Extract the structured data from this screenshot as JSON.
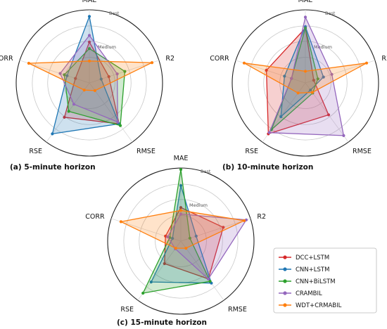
{
  "ring_labels": {
    "best": "Best",
    "medium": "Medium"
  },
  "colors": {
    "DCC+LSTM": "#d62728",
    "CNN+LSTM": "#1f77b4",
    "CNN+BiLSTM": "#2ca02c",
    "CRAMBIL": "#9467bd",
    "WDT+CRMABIL": "#ff7f0e"
  },
  "legend": [
    "DCC+LSTM",
    "CNN+LSTM",
    "CNN+BiLSTM",
    "CRAMBIL",
    "WDT+CRMABIL"
  ],
  "chart_data": [
    {
      "type": "radar",
      "caption": "(a) 5-minute horizon",
      "axes": [
        "MAE",
        "R2",
        "RMSE",
        "RSE",
        "CORR"
      ],
      "scale": [
        0,
        1
      ],
      "series": [
        {
          "name": "DCC+LSTM",
          "values": [
            0.56,
            0.28,
            0.69,
            0.58,
            0.2
          ]
        },
        {
          "name": "CNN+LSTM",
          "values": [
            0.91,
            0.17,
            0.69,
            0.86,
            0.32
          ]
        },
        {
          "name": "CNN+BiLSTM",
          "values": [
            0.47,
            0.51,
            0.72,
            0.48,
            0.36
          ]
        },
        {
          "name": "CRAMBIL",
          "values": [
            0.65,
            0.4,
            0.66,
            0.36,
            0.42
          ]
        },
        {
          "name": "WDT+CRMABIL",
          "values": [
            0.3,
            0.9,
            0.13,
            0.12,
            0.87
          ]
        }
      ]
    },
    {
      "type": "radar",
      "caption": "(b) 10-minute horizon",
      "axes": [
        "MAE",
        "R2",
        "RMSE",
        "RSE",
        "CORR"
      ],
      "scale": [
        0,
        1
      ],
      "series": [
        {
          "name": "DCC+LSTM",
          "values": [
            0.75,
            0.12,
            0.54,
            0.86,
            0.56
          ]
        },
        {
          "name": "CNN+LSTM",
          "values": [
            0.77,
            0.26,
            0.12,
            0.57,
            0.3
          ]
        },
        {
          "name": "CNN+BiLSTM",
          "values": [
            0.75,
            0.18,
            0.17,
            0.79,
            0.2
          ]
        },
        {
          "name": "CRAMBIL",
          "values": [
            0.9,
            0.38,
            0.89,
            0.84,
            0.2
          ]
        },
        {
          "name": "WDT+CRMABIL",
          "values": [
            0.16,
            0.88,
            0.16,
            0.17,
            0.88
          ]
        }
      ]
    },
    {
      "type": "radar",
      "caption": "(c) 15-minute horizon",
      "axes": [
        "MAE",
        "R2",
        "RMSE",
        "RSE",
        "CORR"
      ],
      "scale": [
        0,
        1
      ],
      "series": [
        {
          "name": "DCC+LSTM",
          "values": [
            0.46,
            0.61,
            0.64,
            0.38,
            0.22
          ]
        },
        {
          "name": "CNN+LSTM",
          "values": [
            0.76,
            0.22,
            0.71,
            0.69,
            0.12
          ]
        },
        {
          "name": "CNN+BiLSTM",
          "values": [
            0.98,
            0.13,
            0.68,
            0.88,
            0.16
          ]
        },
        {
          "name": "CRAMBIL",
          "values": [
            0.37,
            0.94,
            0.64,
            0.13,
            0.19
          ]
        },
        {
          "name": "WDT+CRMABIL",
          "values": [
            0.42,
            0.91,
            0.12,
            0.12,
            0.86
          ]
        }
      ]
    }
  ]
}
